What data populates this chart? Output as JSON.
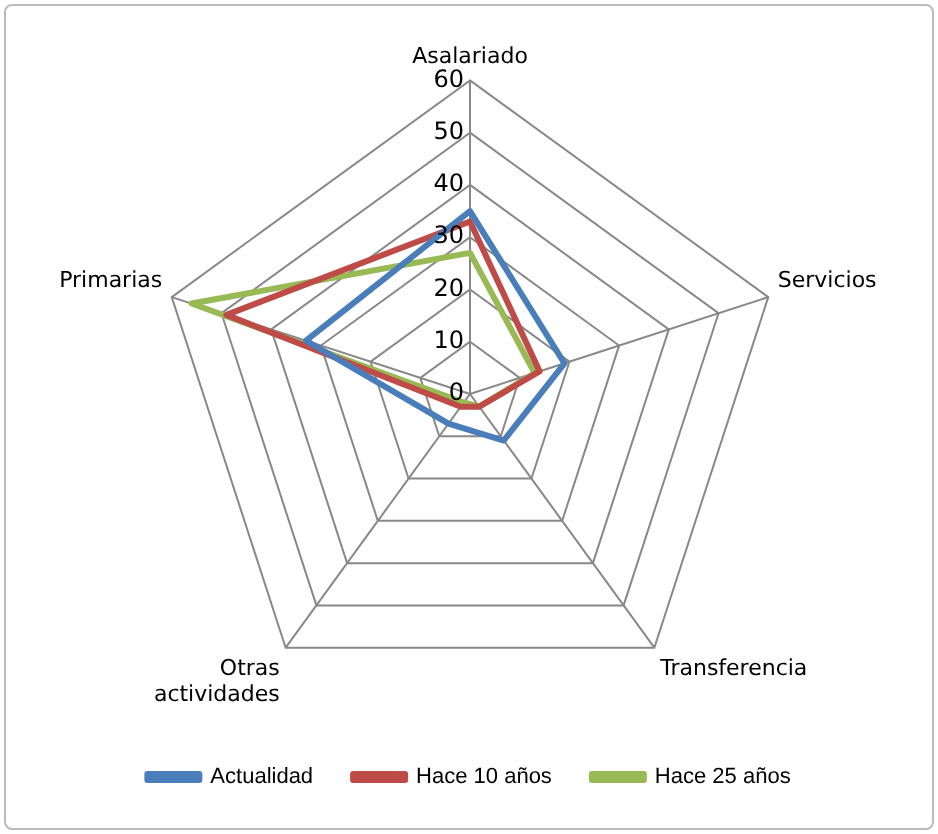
{
  "chart_data": {
    "type": "radar",
    "categories": [
      "Asalariado",
      "Servicios",
      "Transferencia",
      "Otras actividades",
      "Primarias"
    ],
    "series": [
      {
        "name": "Actualidad",
        "color": "#4a7ebb",
        "values": [
          35,
          19,
          11,
          7,
          33
        ]
      },
      {
        "name": "Hace 10 años",
        "color": "#be4b48",
        "values": [
          33,
          14,
          3,
          3,
          49
        ]
      },
      {
        "name": "Hace 25 años",
        "color": "#98b954",
        "values": [
          27,
          13,
          3,
          2,
          56
        ]
      }
    ],
    "ylim": [
      0,
      60
    ],
    "yticks": [
      0,
      10,
      20,
      30,
      40,
      50,
      60
    ],
    "grid": true,
    "legend": "bottom",
    "marker": "none"
  }
}
